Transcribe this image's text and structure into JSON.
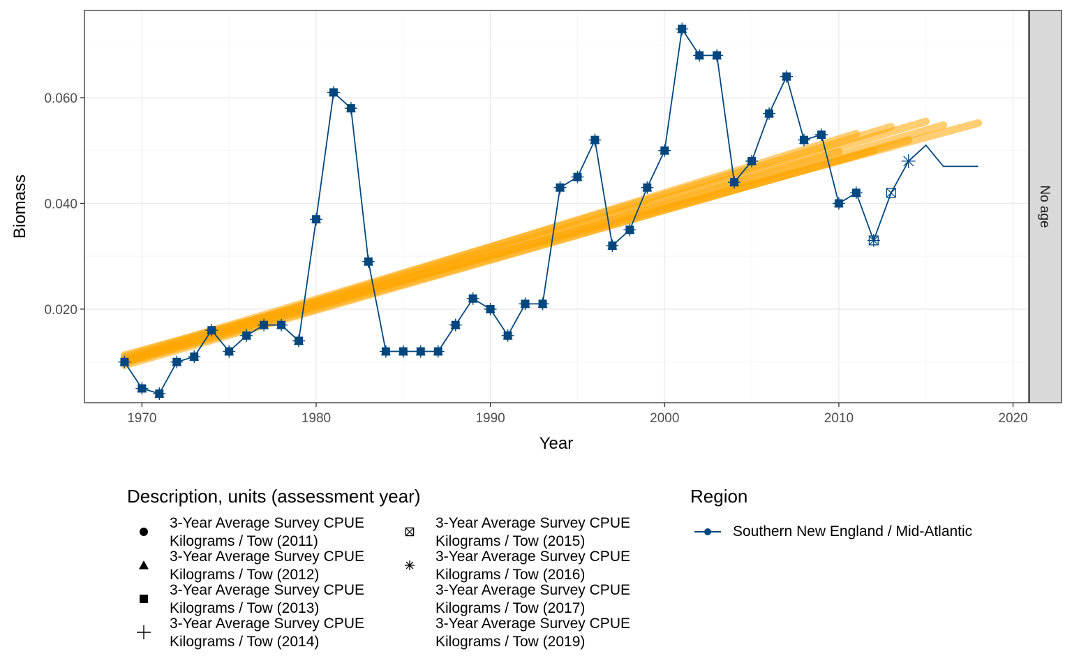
{
  "chart_data": {
    "type": "line",
    "xlabel": "Year",
    "ylabel": "Biomass",
    "xlim": [
      1966.7,
      2020.9
    ],
    "ylim": [
      0.0023,
      0.0765
    ],
    "x_ticks": [
      1970,
      1980,
      1990,
      2000,
      2010,
      2020
    ],
    "x_tick_labels": [
      "1970",
      "1980",
      "1990",
      "2000",
      "2010",
      "2020"
    ],
    "y_ticks": [
      0.02,
      0.04,
      0.06
    ],
    "y_tick_labels": [
      "0.020",
      "0.040",
      "0.060"
    ],
    "grid": true,
    "facet_label": "No age",
    "series": [
      {
        "name": "Southern New England / Mid-Atlantic",
        "color": "#00467f",
        "x": [
          1969,
          1970,
          1971,
          1972,
          1973,
          1974,
          1975,
          1976,
          1977,
          1978,
          1979,
          1980,
          1981,
          1982,
          1983,
          1984,
          1985,
          1986,
          1987,
          1988,
          1989,
          1990,
          1991,
          1992,
          1993,
          1994,
          1995,
          1996,
          1997,
          1998,
          1999,
          2000,
          2001,
          2002,
          2003,
          2004,
          2005,
          2006,
          2007,
          2008,
          2009,
          2010,
          2011,
          2012,
          2013,
          2014,
          2015,
          2016,
          2017,
          2018
        ],
        "y": [
          0.01,
          0.005,
          0.004,
          0.01,
          0.011,
          0.016,
          0.012,
          0.015,
          0.017,
          0.017,
          0.014,
          0.037,
          0.061,
          0.058,
          0.029,
          0.012,
          0.012,
          0.012,
          0.012,
          0.017,
          0.022,
          0.02,
          0.015,
          0.021,
          0.021,
          0.043,
          0.045,
          0.052,
          0.032,
          0.035,
          0.043,
          0.05,
          0.073,
          0.068,
          0.068,
          0.044,
          0.048,
          0.057,
          0.064,
          0.052,
          0.053,
          0.04,
          0.042,
          0.033,
          0.042,
          0.048,
          0.051,
          0.047,
          0.047,
          0.047
        ],
        "last_year_by_assessment": {
          "2011": 2010,
          "2012": 2011,
          "2013": 2012,
          "2014": 2013,
          "2015": 2014,
          "2016": 2015,
          "2017": 2016,
          "2019": 2018
        }
      }
    ],
    "trend_lines": {
      "color": "#ffa500",
      "lines": [
        {
          "x": [
            1969,
            2010
          ],
          "y": [
            0.01,
            0.0498
          ]
        },
        {
          "x": [
            1969,
            2011
          ],
          "y": [
            0.0103,
            0.0532
          ]
        },
        {
          "x": [
            1969,
            2012
          ],
          "y": [
            0.0098,
            0.05
          ]
        },
        {
          "x": [
            1969,
            2013
          ],
          "y": [
            0.011,
            0.0545
          ]
        },
        {
          "x": [
            1969,
            2014
          ],
          "y": [
            0.0094,
            0.052
          ]
        },
        {
          "x": [
            1969,
            2015
          ],
          "y": [
            0.0107,
            0.0555
          ]
        },
        {
          "x": [
            1969,
            2016
          ],
          "y": [
            0.0101,
            0.0548
          ]
        },
        {
          "x": [
            1969,
            2018
          ],
          "y": [
            0.0113,
            0.0552
          ]
        }
      ]
    }
  },
  "legend": {
    "description": {
      "title": "Description, units (assessment year)",
      "items": [
        {
          "symbol": "circle",
          "line1": "3-Year Average Survey CPUE",
          "line2": "Kilograms / Tow (2011)"
        },
        {
          "symbol": "triangle",
          "line1": "3-Year Average Survey CPUE",
          "line2": "Kilograms / Tow (2012)"
        },
        {
          "symbol": "square",
          "line1": "3-Year Average Survey CPUE",
          "line2": "Kilograms / Tow (2013)"
        },
        {
          "symbol": "plus",
          "line1": "3-Year Average Survey CPUE",
          "line2": "Kilograms / Tow (2014)"
        },
        {
          "symbol": "box-x",
          "line1": "3-Year Average Survey CPUE",
          "line2": "Kilograms / Tow (2015)"
        },
        {
          "symbol": "asterisk",
          "line1": "3-Year Average Survey CPUE",
          "line2": "Kilograms / Tow (2016)"
        },
        {
          "symbol": "none",
          "line1": "3-Year Average Survey CPUE",
          "line2": "Kilograms / Tow (2017)"
        },
        {
          "symbol": "none",
          "line1": "3-Year Average Survey CPUE",
          "line2": "Kilograms / Tow (2019)"
        }
      ]
    },
    "region": {
      "title": "Region",
      "items": [
        {
          "label": "Southern New England / Mid-Atlantic",
          "color": "#00467f"
        }
      ]
    }
  }
}
